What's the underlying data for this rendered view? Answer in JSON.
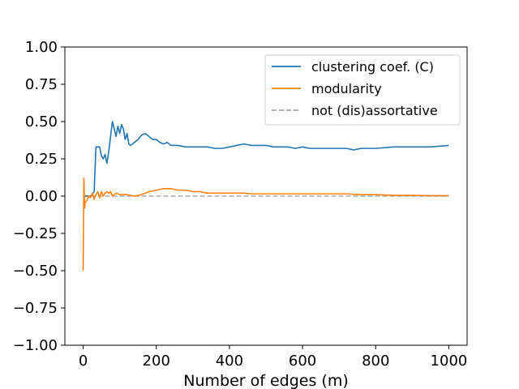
{
  "chart_data": {
    "type": "line",
    "title": "",
    "xlabel": "Number of edges (m)",
    "ylabel": "",
    "xlim": [
      -50,
      1050
    ],
    "ylim": [
      -1.0,
      1.0
    ],
    "x_ticks": [
      0,
      200,
      400,
      600,
      800,
      1000
    ],
    "x_tick_labels": [
      "0",
      "200",
      "400",
      "600",
      "800",
      "1000"
    ],
    "y_ticks": [
      1.0,
      0.75,
      0.5,
      0.25,
      0.0,
      -0.25,
      -0.5,
      -0.75,
      -1.0
    ],
    "y_tick_labels": [
      "1.00",
      "0.75",
      "0.50",
      "0.25",
      "0.00",
      "−0.25",
      "−0.50",
      "−0.75",
      "−1.00"
    ],
    "grid": false,
    "legend_position": "top-right",
    "series": [
      {
        "name": "clustering coef. (C)",
        "color": "#1f77b4",
        "style": "solid",
        "points": [
          [
            0,
            0
          ],
          [
            10,
            0
          ],
          [
            20,
            0
          ],
          [
            30,
            0.03
          ],
          [
            35,
            0.33
          ],
          [
            45,
            0.33
          ],
          [
            50,
            0.27
          ],
          [
            55,
            0.25
          ],
          [
            60,
            0.28
          ],
          [
            65,
            0.22
          ],
          [
            70,
            0.3
          ],
          [
            75,
            0.4
          ],
          [
            80,
            0.5
          ],
          [
            85,
            0.45
          ],
          [
            90,
            0.4
          ],
          [
            95,
            0.47
          ],
          [
            100,
            0.42
          ],
          [
            105,
            0.48
          ],
          [
            110,
            0.45
          ],
          [
            115,
            0.38
          ],
          [
            120,
            0.42
          ],
          [
            125,
            0.35
          ],
          [
            130,
            0.34
          ],
          [
            140,
            0.36
          ],
          [
            150,
            0.38
          ],
          [
            160,
            0.41
          ],
          [
            170,
            0.42
          ],
          [
            180,
            0.4
          ],
          [
            190,
            0.38
          ],
          [
            200,
            0.38
          ],
          [
            210,
            0.36
          ],
          [
            220,
            0.35
          ],
          [
            230,
            0.36
          ],
          [
            240,
            0.34
          ],
          [
            250,
            0.34
          ],
          [
            260,
            0.34
          ],
          [
            280,
            0.33
          ],
          [
            300,
            0.33
          ],
          [
            320,
            0.33
          ],
          [
            340,
            0.33
          ],
          [
            360,
            0.32
          ],
          [
            380,
            0.32
          ],
          [
            400,
            0.33
          ],
          [
            420,
            0.34
          ],
          [
            440,
            0.35
          ],
          [
            460,
            0.34
          ],
          [
            480,
            0.34
          ],
          [
            500,
            0.34
          ],
          [
            520,
            0.33
          ],
          [
            540,
            0.33
          ],
          [
            560,
            0.33
          ],
          [
            580,
            0.32
          ],
          [
            600,
            0.33
          ],
          [
            620,
            0.32
          ],
          [
            640,
            0.32
          ],
          [
            660,
            0.32
          ],
          [
            680,
            0.32
          ],
          [
            700,
            0.32
          ],
          [
            720,
            0.32
          ],
          [
            740,
            0.31
          ],
          [
            760,
            0.32
          ],
          [
            780,
            0.32
          ],
          [
            800,
            0.32
          ],
          [
            850,
            0.33
          ],
          [
            900,
            0.33
          ],
          [
            950,
            0.33
          ],
          [
            1000,
            0.34
          ]
        ]
      },
      {
        "name": "modularity",
        "color": "#ff7f0e",
        "style": "solid",
        "points": [
          [
            0,
            -0.5
          ],
          [
            2,
            0.12
          ],
          [
            4,
            -0.08
          ],
          [
            6,
            -0.04
          ],
          [
            10,
            -0.03
          ],
          [
            15,
            0.0
          ],
          [
            20,
            -0.01
          ],
          [
            25,
            0.02
          ],
          [
            30,
            -0.02
          ],
          [
            35,
            0.01
          ],
          [
            40,
            0.03
          ],
          [
            45,
            -0.01
          ],
          [
            50,
            0.03
          ],
          [
            55,
            0.0
          ],
          [
            60,
            0.02
          ],
          [
            65,
            0.03
          ],
          [
            70,
            0.02
          ],
          [
            75,
            0.03
          ],
          [
            80,
            0.0
          ],
          [
            90,
            0.02
          ],
          [
            100,
            0.01
          ],
          [
            110,
            0.01
          ],
          [
            120,
            0.01
          ],
          [
            140,
            0.0
          ],
          [
            160,
            0.01
          ],
          [
            180,
            0.03
          ],
          [
            200,
            0.04
          ],
          [
            220,
            0.05
          ],
          [
            240,
            0.05
          ],
          [
            260,
            0.04
          ],
          [
            280,
            0.04
          ],
          [
            300,
            0.03
          ],
          [
            320,
            0.03
          ],
          [
            340,
            0.02
          ],
          [
            360,
            0.02
          ],
          [
            380,
            0.02
          ],
          [
            400,
            0.02
          ],
          [
            420,
            0.02
          ],
          [
            440,
            0.02
          ],
          [
            460,
            0.015
          ],
          [
            480,
            0.015
          ],
          [
            500,
            0.015
          ],
          [
            520,
            0.015
          ],
          [
            540,
            0.015
          ],
          [
            560,
            0.015
          ],
          [
            580,
            0.015
          ],
          [
            600,
            0.015
          ],
          [
            640,
            0.015
          ],
          [
            680,
            0.015
          ],
          [
            700,
            0.015
          ],
          [
            720,
            0.015
          ],
          [
            760,
            0.01
          ],
          [
            800,
            0.01
          ],
          [
            850,
            0.005
          ],
          [
            900,
            0.005
          ],
          [
            950,
            0.003
          ],
          [
            1000,
            0.003
          ]
        ]
      },
      {
        "name": "not (dis)assortative",
        "color": "#aaaaaa",
        "style": "dashed",
        "points": [
          [
            0,
            0.0
          ],
          [
            1000,
            0.0
          ]
        ]
      }
    ]
  }
}
